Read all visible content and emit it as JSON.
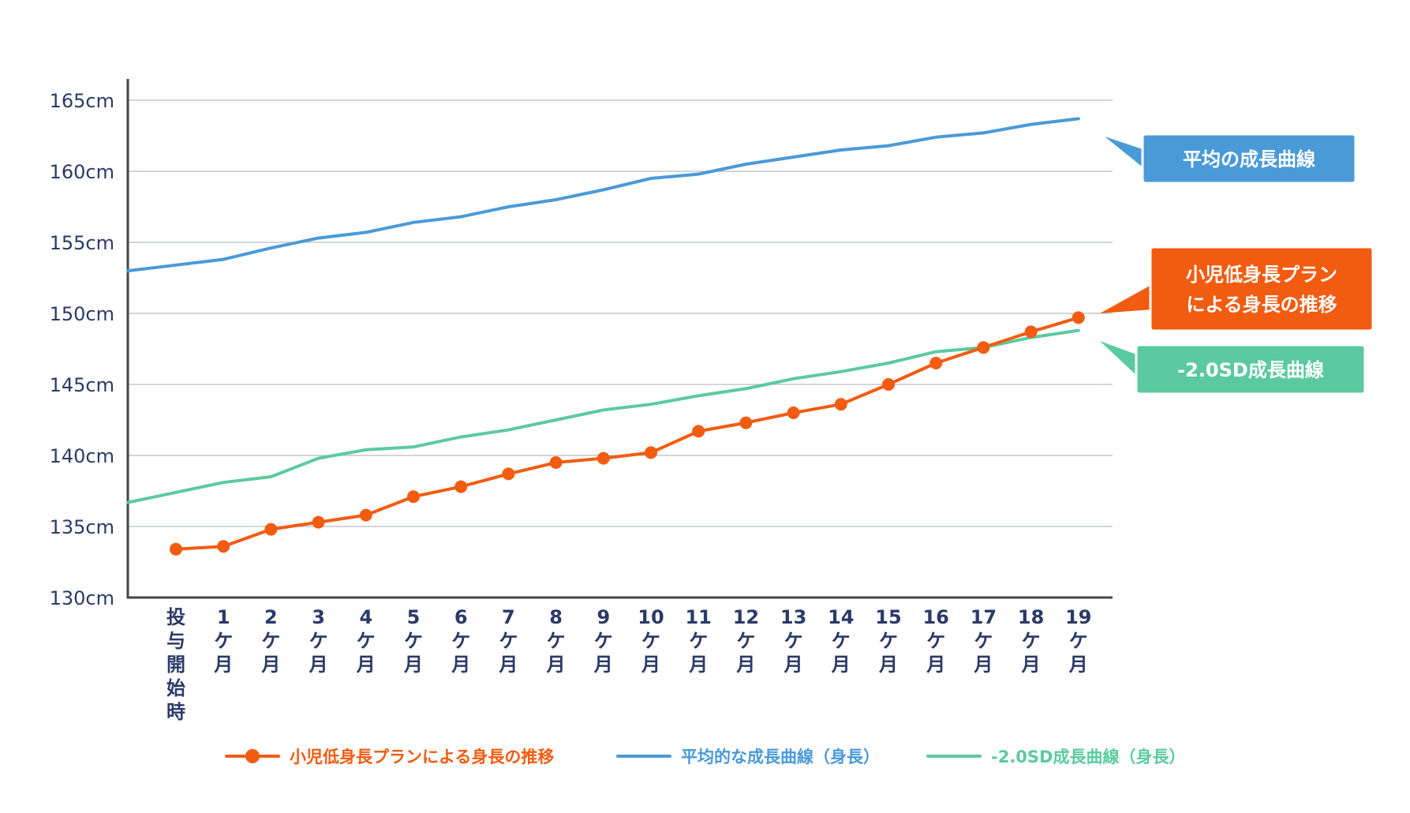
{
  "chart_data": {
    "type": "line",
    "title": "",
    "xlabel": "",
    "ylabel": "",
    "ylim": [
      130,
      165
    ],
    "yticks": [
      130,
      135,
      140,
      145,
      150,
      155,
      160,
      165
    ],
    "ytick_labels": [
      "130cm",
      "135cm",
      "140cm",
      "145cm",
      "150cm",
      "155cm",
      "160cm",
      "165cm"
    ],
    "grid": true,
    "categories": [
      [
        "投",
        "与",
        "開",
        "始",
        "時"
      ],
      [
        "1",
        "ケ",
        "月"
      ],
      [
        "2",
        "ケ",
        "月"
      ],
      [
        "3",
        "ケ",
        "月"
      ],
      [
        "4",
        "ケ",
        "月"
      ],
      [
        "5",
        "ケ",
        "月"
      ],
      [
        "6",
        "ケ",
        "月"
      ],
      [
        "7",
        "ケ",
        "月"
      ],
      [
        "8",
        "ケ",
        "月"
      ],
      [
        "9",
        "ケ",
        "月"
      ],
      [
        "10",
        "ケ",
        "月"
      ],
      [
        "11",
        "ケ",
        "月"
      ],
      [
        "12",
        "ケ",
        "月"
      ],
      [
        "13",
        "ケ",
        "月"
      ],
      [
        "14",
        "ケ",
        "月"
      ],
      [
        "15",
        "ケ",
        "月"
      ],
      [
        "16",
        "ケ",
        "月"
      ],
      [
        "17",
        "ケ",
        "月"
      ],
      [
        "18",
        "ケ",
        "月"
      ],
      [
        "19",
        "ケ",
        "月"
      ]
    ],
    "series": [
      {
        "name": "平均的な成長曲線（身長）",
        "color": "#4a9ad8",
        "markers": false,
        "extend_left": true,
        "values": [
          153.4,
          153.8,
          154.6,
          155.3,
          155.7,
          156.4,
          156.8,
          157.5,
          158.0,
          158.7,
          159.5,
          159.8,
          160.5,
          161.0,
          161.5,
          161.8,
          162.4,
          162.7,
          163.3,
          163.7
        ]
      },
      {
        "name": "-2.0SD成長曲線（身長）",
        "color": "#5ccaa0",
        "markers": false,
        "extend_left": true,
        "values": [
          137.4,
          138.1,
          138.5,
          139.8,
          140.4,
          140.6,
          141.3,
          141.8,
          142.5,
          143.2,
          143.6,
          144.2,
          144.7,
          145.4,
          145.9,
          146.5,
          147.3,
          147.6,
          148.3,
          148.8
        ]
      },
      {
        "name": "小児低身長プランによる身長の推移",
        "color": "#f25c11",
        "markers": true,
        "extend_left": false,
        "values": [
          133.4,
          133.6,
          134.8,
          135.3,
          135.8,
          137.1,
          137.8,
          138.7,
          139.5,
          139.8,
          140.2,
          141.7,
          142.3,
          143.0,
          143.6,
          145.0,
          146.5,
          147.6,
          148.7,
          149.7
        ]
      }
    ],
    "callouts": [
      {
        "lines": [
          "平均の成長曲線"
        ],
        "color": "#4a9ad8"
      },
      {
        "lines": [
          "小児低身長プラン",
          "による身長の推移"
        ],
        "color": "#f25c11"
      },
      {
        "lines": [
          "-2.0SD成長曲線"
        ],
        "color": "#5ccaa0"
      }
    ],
    "legend": {
      "position": "bottom",
      "items": [
        {
          "label": "小児低身長プランによる身長の推移",
          "color": "#f25c11",
          "marker": true
        },
        {
          "label": "平均的な成長曲線（身長）",
          "color": "#4a9ad8",
          "marker": false
        },
        {
          "label": "-2.0SD成長曲線（身長）",
          "color": "#5ccaa0",
          "marker": false
        }
      ]
    }
  }
}
